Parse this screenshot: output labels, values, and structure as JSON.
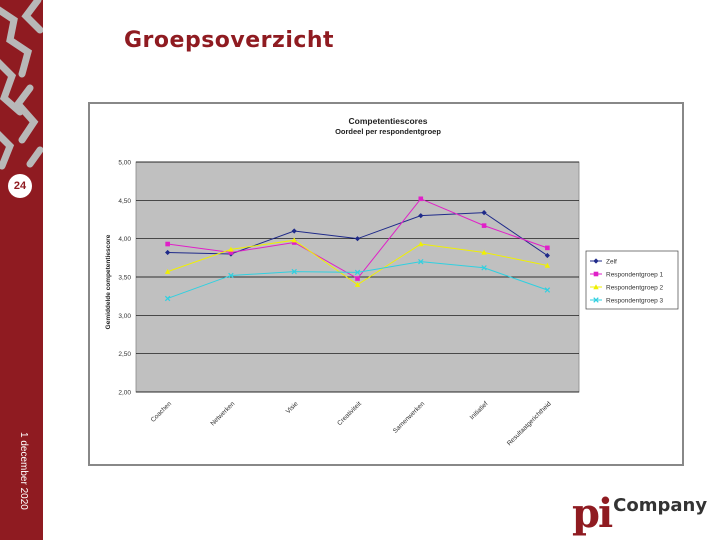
{
  "slide": {
    "title": "Groepsoverzicht",
    "page_number": "24",
    "date": "1 december 2020",
    "logo_pi": "pi",
    "logo_company": "Company"
  },
  "colors": {
    "brand": "#8f1b21",
    "plot_bg": "#c0c0c0"
  },
  "chart_data": {
    "type": "line",
    "title": "Competentiescores",
    "subtitle": "Oordeel per respondentgroep",
    "ylabel": "Gemiddelde competentiescore",
    "xlabel": "",
    "ylim": [
      2.0,
      5.0
    ],
    "yticks": [
      "5,00",
      "4,50",
      "4,00",
      "3,50",
      "3,00",
      "2,50",
      "2,00"
    ],
    "grid": true,
    "legend_position": "right",
    "categories": [
      "Coachen",
      "Netwerken",
      "Visie",
      "Creativiteit",
      "Samenwerken",
      "Initiatief",
      "Resultaatgerichtheid"
    ],
    "series": [
      {
        "name": "Zelf",
        "color": "#1f2a8a",
        "marker": "diamond",
        "values": [
          3.82,
          3.8,
          4.1,
          4.0,
          4.3,
          4.34,
          3.78
        ]
      },
      {
        "name": "Respondentgroep 1",
        "color": "#e020c8",
        "marker": "square",
        "values": [
          3.93,
          3.82,
          3.95,
          3.48,
          4.52,
          4.17,
          3.88
        ]
      },
      {
        "name": "Respondentgroep 2",
        "color": "#f0f000",
        "marker": "triangle",
        "values": [
          3.57,
          3.86,
          3.98,
          3.4,
          3.93,
          3.82,
          3.65
        ]
      },
      {
        "name": "Respondentgroep 3",
        "color": "#30d0e0",
        "marker": "x",
        "values": [
          3.22,
          3.52,
          3.57,
          3.56,
          3.7,
          3.62,
          3.33
        ]
      }
    ]
  }
}
